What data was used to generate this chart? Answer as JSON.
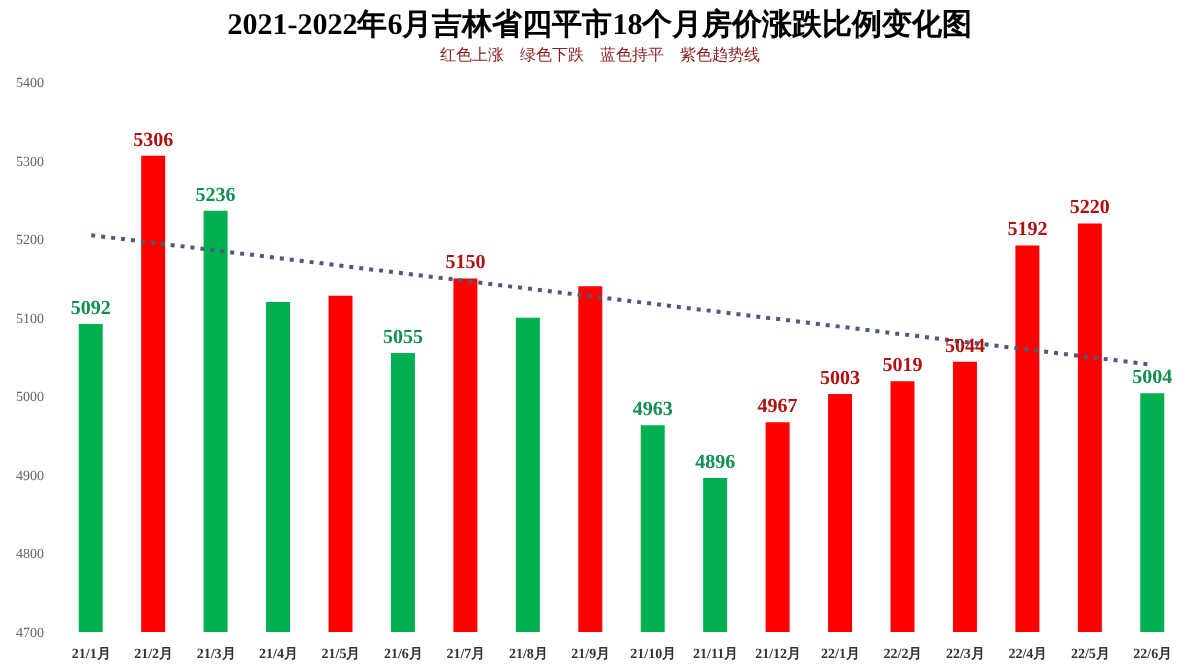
{
  "chart_data": {
    "type": "bar",
    "title": "2021-2022年6月吉林省四平市18个月房价涨跌比例变化图",
    "subtitle": "红色上涨　绿色下跌　蓝色持平　紫色趋势线",
    "categories": [
      "21/1月",
      "21/2月",
      "21/3月",
      "21/4月",
      "21/5月",
      "21/6月",
      "21/7月",
      "21/8月",
      "21/9月",
      "21/10月",
      "21/11月",
      "21/12月",
      "22/1月",
      "22/2月",
      "22/3月",
      "22/4月",
      "22/5月",
      "22/6月"
    ],
    "series": [
      {
        "values": [
          5092,
          5306,
          5236,
          5120,
          5128,
          5055,
          5150,
          5100,
          5140,
          4963,
          4896,
          4967,
          5003,
          5019,
          5044,
          5192,
          5220,
          5004
        ],
        "colors": [
          "#00b050",
          "#ff0000",
          "#00b050",
          "#00b050",
          "#ff0000",
          "#00b050",
          "#ff0000",
          "#00b050",
          "#ff0000",
          "#00b050",
          "#00b050",
          "#ff0000",
          "#ff0000",
          "#ff0000",
          "#ff0000",
          "#ff0000",
          "#ff0000",
          "#00b050"
        ],
        "value_labels": [
          "5092",
          "5306",
          "5236",
          null,
          null,
          "5055",
          "5150",
          null,
          null,
          "4963",
          "4896",
          "4967",
          "5003",
          "5019",
          "5044",
          "5192",
          "5220",
          "5004"
        ]
      },
      {
        "type": "line",
        "color": "#4b5b78",
        "line_style": "dotted",
        "marker": "none",
        "values": [
          5205,
          null,
          null,
          null,
          null,
          null,
          null,
          null,
          null,
          null,
          null,
          null,
          null,
          null,
          null,
          null,
          null,
          5040
        ]
      }
    ],
    "ylim": [
      4700,
      5400
    ],
    "yticks": [
      4700,
      4800,
      4900,
      5000,
      5100,
      5200,
      5300,
      5400
    ]
  }
}
